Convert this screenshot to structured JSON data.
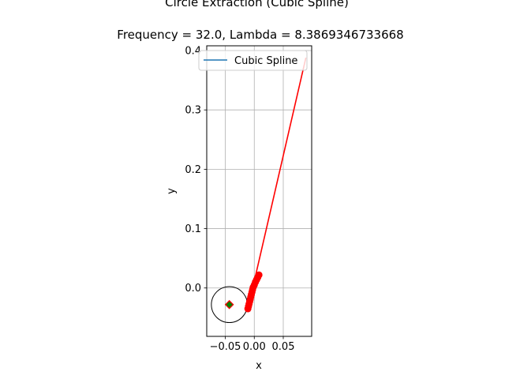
{
  "chart_data": {
    "type": "line",
    "title": "Circle Extraction (Cubic Spline)",
    "subtitle": "Frequency = 32.0, Lambda = 8.3869346733668",
    "xlabel": "x",
    "ylabel": "y",
    "xlim": [
      -0.082,
      0.099
    ],
    "ylim": [
      -0.0815,
      0.408
    ],
    "xticks": [
      -0.05,
      0.0,
      0.05
    ],
    "xtick_labels": [
      "−0.05",
      "0.00",
      "0.05"
    ],
    "yticks": [
      0.0,
      0.1,
      0.2,
      0.3,
      0.4
    ],
    "ytick_labels": [
      "0.0",
      "0.1",
      "0.2",
      "0.3",
      "0.4"
    ],
    "grid": true,
    "legend": {
      "position": "top-right",
      "entries": [
        "Cubic Spline"
      ]
    },
    "series": [
      {
        "name": "Cubic Spline",
        "color": "#1f77b4",
        "points": [
          [
            -0.01,
            -0.032
          ],
          [
            -0.005,
            -0.015
          ],
          [
            0.0,
            0.0
          ],
          [
            0.004,
            0.012
          ],
          [
            0.008,
            0.022
          ]
        ]
      },
      {
        "color": "#ff0000",
        "marker": "line",
        "points": [
          [
            -0.011,
            -0.035
          ],
          [
            0.089,
            0.388
          ]
        ]
      },
      {
        "color": "#ff0000",
        "marker": "circle",
        "points": [
          [
            -0.011,
            -0.035
          ],
          [
            -0.01,
            -0.031
          ],
          [
            -0.009,
            -0.027
          ],
          [
            -0.008,
            -0.023
          ],
          [
            -0.007,
            -0.019
          ],
          [
            -0.006,
            -0.015
          ],
          [
            -0.005,
            -0.011
          ],
          [
            -0.004,
            -0.007
          ],
          [
            -0.003,
            -0.003
          ],
          [
            -0.002,
            0.001
          ],
          [
            0.0,
            0.005
          ],
          [
            0.002,
            0.01
          ],
          [
            0.004,
            0.014
          ],
          [
            0.006,
            0.018
          ],
          [
            0.008,
            0.022
          ]
        ]
      }
    ],
    "circle": {
      "center": [
        -0.043,
        -0.028
      ],
      "radius": 0.031,
      "color": "#000000"
    },
    "center_marker": {
      "point": [
        -0.043,
        -0.028
      ],
      "fill": "#008000",
      "edge": "#ff0000",
      "shape": "diamond"
    }
  }
}
